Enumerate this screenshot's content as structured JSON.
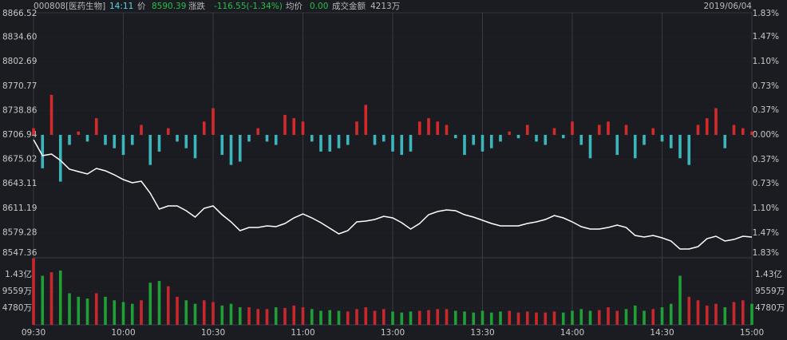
{
  "header": {
    "code": "000808[医药生物]",
    "time": "14:11",
    "price_label": "价",
    "price": "8590.39",
    "change_label": "涨跌",
    "change": "-116.55(-1.34%)",
    "avg_label": "均价",
    "avg": "0.00",
    "turnover_label": "成交金额",
    "turnover": "4213万",
    "date": "2019/06/04"
  },
  "chart_data": [
    {
      "type": "line",
      "xlim": [
        0,
        80
      ],
      "ylim": [
        8547.36,
        8866.52
      ],
      "yticks": [
        8866.52,
        {
          "value": 8834.6,
          "label": "8834.60"
        },
        8802.69,
        8770.77,
        8738.86,
        8706.94,
        8675.02,
        8643.11,
        8611.19,
        8579.28,
        8547.36
      ],
      "y2lim": [
        -1.83,
        1.83
      ],
      "y2ticks": [
        {
          "value": 1.83,
          "label": "1.83%"
        },
        {
          "value": 1.47,
          "label": "1.47%"
        },
        {
          "value": 1.1,
          "label": "1.10%"
        },
        {
          "value": 0.73,
          "label": "0.73%"
        },
        {
          "value": 0.37,
          "label": "0.37%"
        },
        {
          "value": 0,
          "label": "0.00%"
        },
        {
          "value": -0.37,
          "label": "0.37%"
        },
        {
          "value": -0.73,
          "label": "0.73%"
        },
        {
          "value": -1.1,
          "label": "1.10%"
        },
        {
          "value": -1.47,
          "label": "1.47%"
        },
        {
          "value": -1.83,
          "label": "1.83%"
        }
      ],
      "up_color": "#e8383d",
      "down_color": "#1fbf3f",
      "grid": true,
      "series": [
        {
          "type": "line",
          "color": "#ffffff",
          "values": [
            8700.68,
            8679.82,
            8681.91,
            8673.56,
            8662.09,
            8658.96,
            8655.83,
            8663.13,
            8660.0,
            8654.78,
            8648.53,
            8644.35,
            8646.44,
            8630.79,
            8609.93,
            8614.1,
            8614.1,
            8607.85,
            8599.5,
            8610.97,
            8614.1,
            8602.63,
            8593.24,
            8581.77,
            8585.94,
            8585.94,
            8588.03,
            8586.98,
            8591.16,
            8598.46,
            8603.67,
            8598.46,
            8592.2,
            8584.9,
            8577.6,
            8581.77,
            8593.24,
            8594.29,
            8596.37,
            8600.54,
            8598.46,
            8592.2,
            8583.85,
            8591.16,
            8602.63,
            8606.8,
            8608.89,
            8607.85,
            8602.63,
            8599.5,
            8595.33,
            8591.16,
            8588.03,
            8588.03,
            8588.03,
            8591.16,
            8593.24,
            8596.37,
            8601.59,
            8598.46,
            8593.24,
            8586.98,
            8583.85,
            8583.85,
            8585.94,
            8589.07,
            8585.94,
            8575.51,
            8573.42,
            8575.51,
            8572.38,
            8568.21,
            8557.78,
            8557.78,
            8560.91,
            8571.34,
            8574.47,
            8568.21,
            8570.29,
            8574.47,
            8573.42
          ]
        },
        {
          "type": "bar",
          "axis": "y2",
          "up_color": "#d42a2a",
          "down_color": "#3cb6bd",
          "values": [
            0.1,
            -0.5,
            0.6,
            -0.7,
            -0.15,
            0.05,
            -0.1,
            0.25,
            -0.15,
            -0.2,
            -0.3,
            -0.15,
            0.15,
            -0.45,
            -0.25,
            0.1,
            -0.1,
            -0.2,
            -0.35,
            0.2,
            0.4,
            -0.3,
            -0.45,
            -0.4,
            -0.1,
            0.1,
            -0.1,
            -0.15,
            0.3,
            0.25,
            0.2,
            -0.1,
            -0.25,
            -0.25,
            -0.2,
            -0.15,
            0.2,
            0.45,
            -0.15,
            -0.1,
            -0.25,
            -0.3,
            -0.25,
            0.2,
            0.25,
            0.2,
            0.15,
            -0.05,
            -0.3,
            -0.15,
            -0.25,
            -0.2,
            -0.1,
            0.05,
            -0.05,
            0.15,
            -0.1,
            -0.15,
            0.1,
            -0.05,
            0.2,
            -0.15,
            -0.35,
            0.15,
            0.2,
            -0.3,
            0.15,
            -0.35,
            -0.15,
            0.1,
            -0.1,
            -0.2,
            -0.35,
            -0.45,
            0.15,
            0.25,
            0.4,
            -0.2,
            0.15,
            0.1,
            0.05
          ]
        }
      ]
    },
    {
      "type": "bar",
      "xlim": [
        0,
        80
      ],
      "xticks": [
        {
          "value": 0,
          "label": "09:30"
        },
        {
          "value": 10,
          "label": "10:00"
        },
        {
          "value": 20,
          "label": "10:30"
        },
        {
          "value": 30,
          "label": "11:00"
        },
        {
          "value": 40,
          "label": "13:00"
        },
        {
          "value": 50,
          "label": "13:30"
        },
        {
          "value": 60,
          "label": "14:00"
        },
        {
          "value": 70,
          "label": "14:30"
        },
        {
          "value": 80,
          "label": "15:00"
        }
      ],
      "ylim": [
        0,
        19120
      ],
      "yticks": [
        {
          "value": 14300,
          "label": "1.43亿"
        },
        {
          "value": 9559,
          "label": "9559万"
        },
        {
          "value": 4780,
          "label": "4780万"
        }
      ],
      "up_color": "#c8282c",
      "down_color": "#1f9f35",
      "values": [
        19000,
        14000,
        15000,
        15500,
        9000,
        8000,
        7500,
        9000,
        8000,
        7000,
        6500,
        6000,
        7000,
        12000,
        12500,
        11000,
        8000,
        7000,
        6000,
        7000,
        6500,
        5500,
        6000,
        5000,
        5000,
        4500,
        4500,
        5000,
        4800,
        5500,
        5000,
        4500,
        4000,
        4200,
        4000,
        3800,
        4500,
        5000,
        4000,
        4500,
        3800,
        3500,
        3800,
        4000,
        4200,
        4500,
        4500,
        4000,
        3800,
        3500,
        4000,
        3500,
        3800,
        4000,
        3500,
        3800,
        3500,
        3500,
        3800,
        3500,
        4000,
        4500,
        4000,
        4200,
        5000,
        4000,
        4500,
        5500,
        4000,
        4500,
        5000,
        6000,
        14000,
        8000,
        7000,
        5500,
        6000,
        5000,
        6500,
        7000,
        6000
      ]
    }
  ]
}
